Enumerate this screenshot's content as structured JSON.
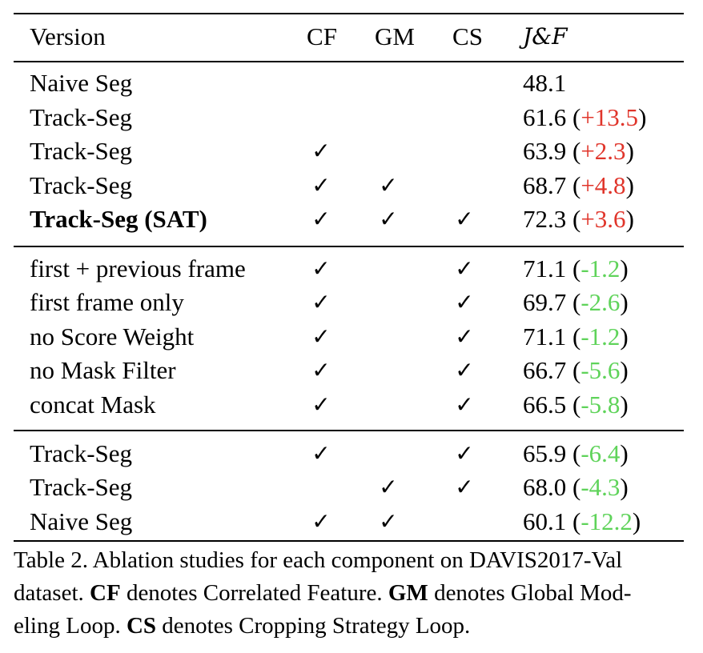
{
  "header": {
    "version": "Version",
    "cf": "CF",
    "gm": "GM",
    "cs": "CS",
    "jf": "J&F"
  },
  "check_symbol": "✓",
  "groups": [
    [
      {
        "version": "Naive Seg",
        "cf": false,
        "gm": false,
        "cs": false,
        "score": "48.1",
        "delta": "",
        "bold": false
      },
      {
        "version": "Track-Seg",
        "cf": false,
        "gm": false,
        "cs": false,
        "score": "61.6",
        "delta": "+13.5",
        "bold": false
      },
      {
        "version": "Track-Seg",
        "cf": true,
        "gm": false,
        "cs": false,
        "score": "63.9",
        "delta": "+2.3",
        "bold": false
      },
      {
        "version": "Track-Seg",
        "cf": true,
        "gm": true,
        "cs": false,
        "score": "68.7",
        "delta": "+4.8",
        "bold": false
      },
      {
        "version": "Track-Seg (SAT)",
        "cf": true,
        "gm": true,
        "cs": true,
        "score": "72.3",
        "delta": "+3.6",
        "bold": true
      }
    ],
    [
      {
        "version": "first + previous frame",
        "cf": true,
        "gm": false,
        "cs": true,
        "score": "71.1",
        "delta": "-1.2",
        "bold": false
      },
      {
        "version": "first frame only",
        "cf": true,
        "gm": false,
        "cs": true,
        "score": "69.7",
        "delta": "-2.6",
        "bold": false
      },
      {
        "version": "no Score Weight",
        "cf": true,
        "gm": false,
        "cs": true,
        "score": "71.1",
        "delta": "-1.2",
        "bold": false
      },
      {
        "version": "no Mask Filter",
        "cf": true,
        "gm": false,
        "cs": true,
        "score": "66.7",
        "delta": "-5.6",
        "bold": false
      },
      {
        "version": "concat Mask",
        "cf": true,
        "gm": false,
        "cs": true,
        "score": "66.5",
        "delta": "-5.8",
        "bold": false
      }
    ],
    [
      {
        "version": "Track-Seg",
        "cf": true,
        "gm": false,
        "cs": true,
        "score": "65.9",
        "delta": "-6.4",
        "bold": false
      },
      {
        "version": "Track-Seg",
        "cf": false,
        "gm": true,
        "cs": true,
        "score": "68.0",
        "delta": "-4.3",
        "bold": false
      },
      {
        "version": "Naive Seg",
        "cf": true,
        "gm": true,
        "cs": false,
        "score": "60.1",
        "delta": "-12.2",
        "bold": false
      }
    ]
  ],
  "caption": {
    "label": "Table 2.",
    "line1": " Ablation studies for each component on DAVIS2017-Val",
    "line2_a": "dataset. ",
    "cf_term": "CF",
    "line2_b": " denotes Correlated Feature. ",
    "gm_term": "GM",
    "line2_c": " denotes Global Mod-",
    "line3_a": "eling Loop. ",
    "cs_term": "CS",
    "line3_b": " denotes Cropping Strategy Loop."
  },
  "colors": {
    "positive": "#e0352b",
    "negative": "#5fd35a"
  }
}
